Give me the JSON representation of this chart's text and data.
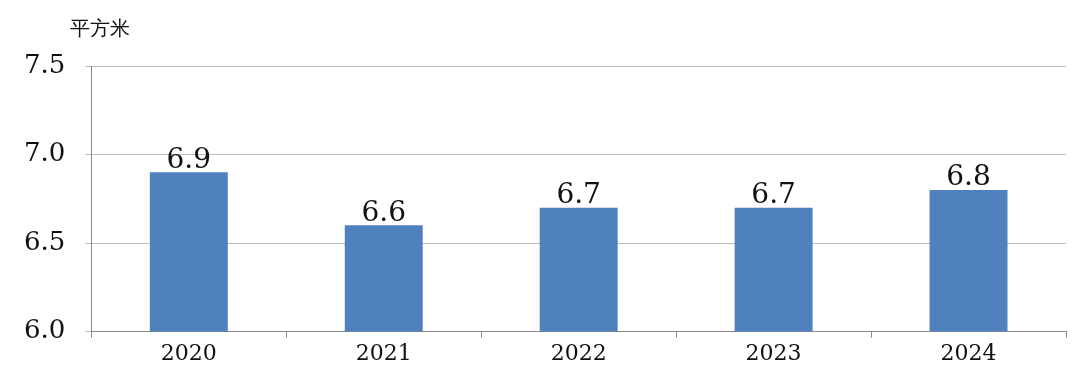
{
  "chart_data": {
    "type": "bar",
    "ylabel": "平方米",
    "categories": [
      "2020",
      "2021",
      "2022",
      "2023",
      "2024"
    ],
    "values": [
      6.9,
      6.6,
      6.7,
      6.7,
      6.8
    ],
    "color": "#4f81bd",
    "ylim": [
      6.0,
      7.5
    ],
    "yticks": [
      {
        "value": 6,
        "label": "6.0"
      },
      6.5,
      {
        "value": 7,
        "label": "7.0"
      },
      7.5
    ],
    "grid": "y",
    "data_labels": true,
    "legend": false
  }
}
